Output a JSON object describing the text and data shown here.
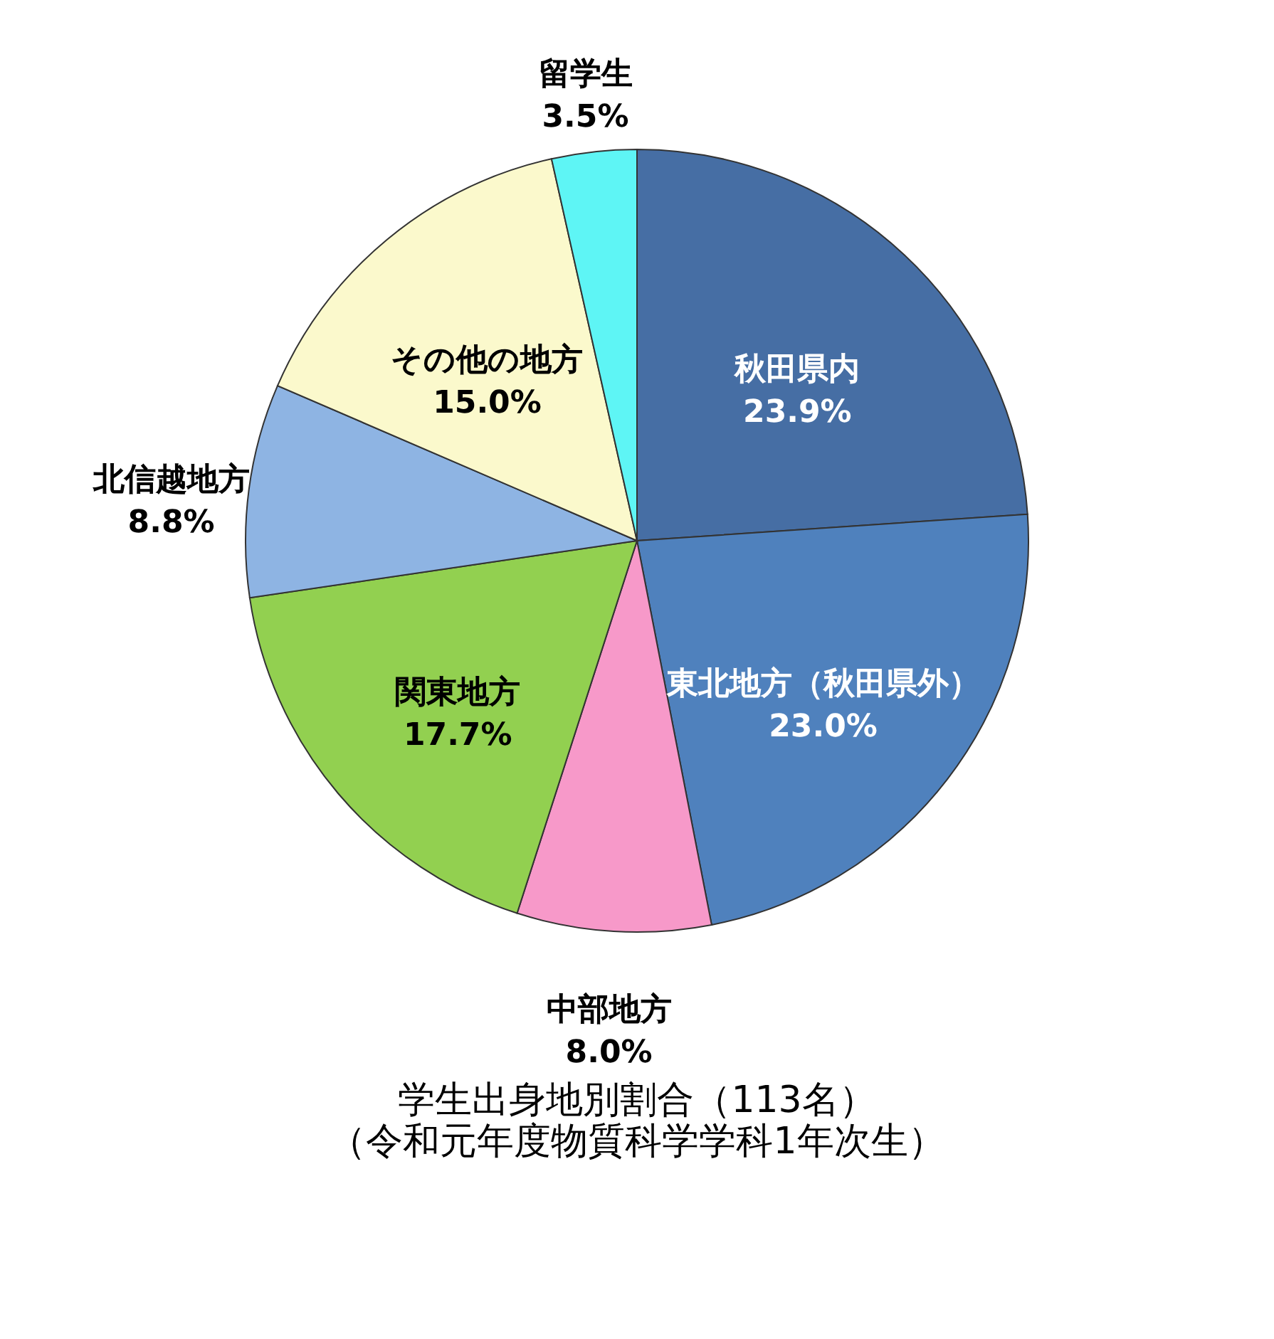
{
  "chart_data": {
    "type": "pie",
    "title": "学生出身地別割合（113名）",
    "subtitle": "（令和元年度物質科学学科1年次生）",
    "categories": [
      "秋田県内",
      "東北地方（秋田県外）",
      "中部地方",
      "関東地方",
      "北信越地方",
      "その他の地方",
      "留学生"
    ],
    "values": [
      23.9,
      23.0,
      8.0,
      17.7,
      8.8,
      15.0,
      3.5
    ],
    "value_labels": [
      "23.9%",
      "23.0%",
      "8.0%",
      "17.7%",
      "8.8%",
      "15.0%",
      "3.5%"
    ],
    "colors": [
      "#466ea4",
      "#4f81bd",
      "#f799c9",
      "#92d050",
      "#8eb4e3",
      "#fbf9cc",
      "#5ef5f5"
    ]
  }
}
